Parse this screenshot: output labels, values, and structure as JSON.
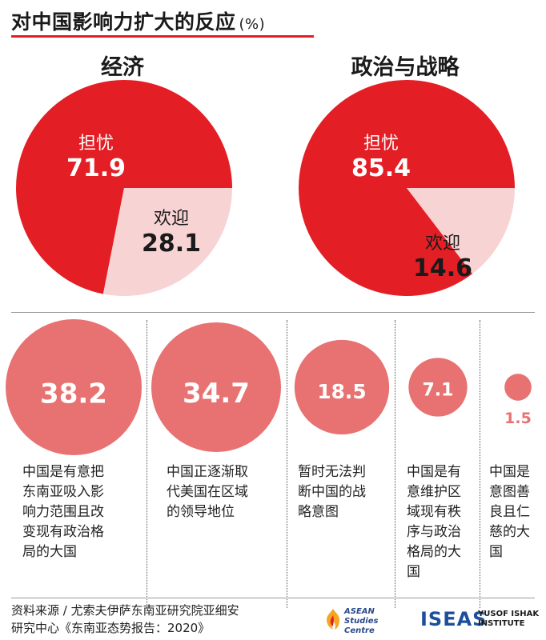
{
  "title": "对中国影响力扩大的反应",
  "title_unit": "(%)",
  "colors": {
    "worry": "#e31e24",
    "welcome": "#f8d3d3",
    "bubble": "#e87272",
    "accent": "#e31e24"
  },
  "chart_data": [
    {
      "type": "pie",
      "title": "经济",
      "slices": [
        {
          "label": "担忧",
          "value": 71.9
        },
        {
          "label": "欢迎",
          "value": 28.1
        }
      ]
    },
    {
      "type": "pie",
      "title": "政治与战略",
      "slices": [
        {
          "label": "担忧",
          "value": 85.4
        },
        {
          "label": "欢迎",
          "value": 14.6
        }
      ]
    },
    {
      "type": "bubble",
      "items": [
        {
          "value": 38.2,
          "value_label": "38.2",
          "label": "中国是有意把东南亚吸入影响力范围且改变现有政治格局的大国",
          "lines": [
            "中国是有意把",
            "东南亚吸入影",
            "响力范围且改",
            "变现有政治格",
            "局的大国"
          ]
        },
        {
          "value": 34.7,
          "value_label": "34.7",
          "label": "中国正逐渐取代美国在区域的领导地位",
          "lines": [
            "中国正逐渐取",
            "代美国在区域",
            "的领导地位"
          ]
        },
        {
          "value": 18.5,
          "value_label": "18.5",
          "label": "暂时无法判断中国的战略意图",
          "lines": [
            "暂时无法判",
            "断中国的战",
            "略意图"
          ]
        },
        {
          "value": 7.1,
          "value_label": "7.1",
          "label": "中国是有意维护区域现有秩序与政治格局的大国",
          "lines": [
            "中国是有",
            "意维护区",
            "域现有秩",
            "序与政治",
            "格局的大",
            "国"
          ]
        },
        {
          "value": 1.5,
          "value_label": "1.5",
          "label": "中国是意图善良且仁慈的大国",
          "lines": [
            "中国是",
            "意图善",
            "良且仁",
            "慈的大",
            "国"
          ]
        }
      ]
    }
  ],
  "source": {
    "line1": "资料来源 / 尤索夫伊萨东南亚研究院亚细安",
    "line2": "研究中心《东南亚态势报告：2020》"
  },
  "logos": {
    "asean_line1": "ASEAN",
    "asean_line2": "Studies Centre",
    "iseas_big": "ISEAS",
    "iseas_small1": "YUSOF ISHAK",
    "iseas_small2": "INSTITUTE"
  }
}
